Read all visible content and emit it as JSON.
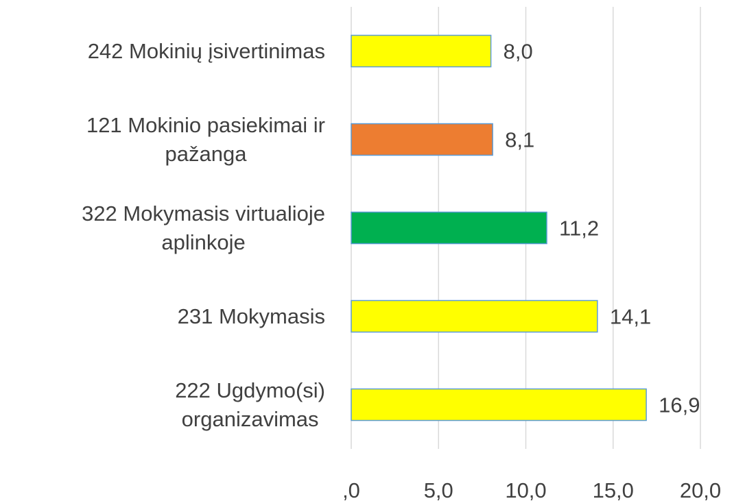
{
  "chart_data": {
    "type": "bar",
    "orientation": "horizontal",
    "categories": [
      "242 Mokinių įsivertinimas",
      "121 Mokinio pasiekimai ir\npažanga",
      "322 Mokymasis virtualioje\naplinkoje",
      "231 Mokymasis",
      "222 Ugdymo(si)\norganizavimas"
    ],
    "values": [
      8.0,
      8.1,
      11.2,
      14.1,
      16.9
    ],
    "value_labels": [
      "8,0",
      "8,1",
      "11,2",
      "14,1",
      "16,9"
    ],
    "colors": [
      "#ffff00",
      "#ed7d31",
      "#00b050",
      "#ffff00",
      "#ffff00"
    ],
    "xlim": [
      0,
      20
    ],
    "xticks": [
      {
        "value": 0,
        "label": ",0"
      },
      {
        "value": 5,
        "label": "5,0"
      },
      {
        "value": 10,
        "label": "10,0"
      },
      {
        "value": 15,
        "label": "15,0"
      },
      {
        "value": 20,
        "label": "20,0"
      }
    ],
    "grid": true
  }
}
